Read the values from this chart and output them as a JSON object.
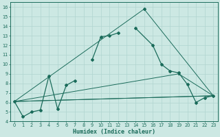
{
  "xlabel": "Humidex (Indice chaleur)",
  "bg_color": "#cce8e3",
  "line_color": "#1a6b5a",
  "grid_color": "#b0d4cf",
  "xlim": [
    -0.5,
    23.5
  ],
  "ylim": [
    4,
    16.5
  ],
  "xticks": [
    0,
    1,
    2,
    3,
    4,
    5,
    6,
    7,
    8,
    9,
    10,
    11,
    12,
    13,
    14,
    15,
    16,
    17,
    18,
    19,
    20,
    21,
    22,
    23
  ],
  "yticks": [
    4,
    5,
    6,
    7,
    8,
    9,
    10,
    11,
    12,
    13,
    14,
    15,
    16
  ],
  "main_x": [
    0,
    1,
    2,
    3,
    4,
    5,
    6,
    7,
    9,
    10,
    11,
    12,
    14,
    16,
    17,
    18,
    19,
    20,
    21,
    22,
    23
  ],
  "main_y": [
    6.1,
    4.5,
    5.0,
    5.2,
    8.8,
    5.3,
    7.8,
    8.3,
    10.5,
    12.9,
    13.0,
    13.3,
    13.8,
    12.0,
    10.0,
    9.3,
    9.1,
    7.9,
    6.0,
    6.5,
    6.7
  ],
  "peak_x": [
    15
  ],
  "peak_y": [
    15.8
  ],
  "line1_x": [
    0,
    23
  ],
  "line1_y": [
    6.1,
    6.7
  ],
  "line2_x": [
    0,
    23
  ],
  "line2_y": [
    6.1,
    6.7
  ],
  "line3_x": [
    0,
    19,
    23
  ],
  "line3_y": [
    6.1,
    9.0,
    6.7
  ],
  "line4_x": [
    0,
    15,
    23
  ],
  "line4_y": [
    6.1,
    15.8,
    6.7
  ]
}
